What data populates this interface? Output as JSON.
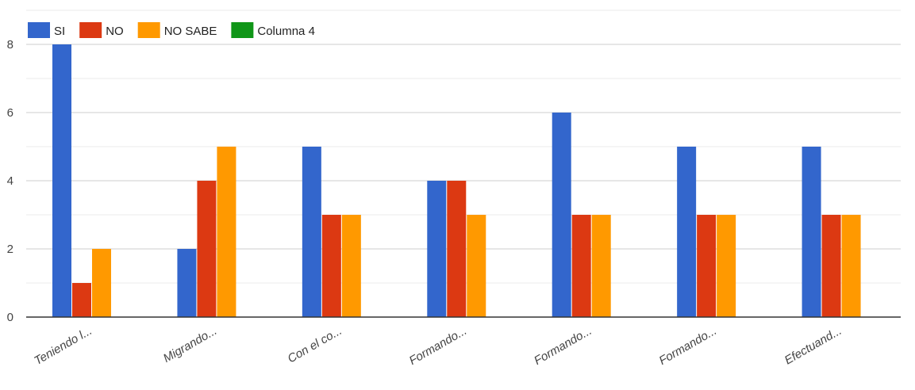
{
  "chart_data": {
    "type": "bar",
    "title": "",
    "xlabel": "",
    "ylabel": "",
    "categories": [
      "Teniendo l...",
      "Migrando...",
      "Con el co...",
      "Formando...",
      "Formando...",
      "Formando...",
      "Efectuand..."
    ],
    "series": [
      {
        "name": "SI",
        "color": "#3366cc",
        "values": [
          8,
          2,
          5,
          4,
          6,
          5,
          5
        ]
      },
      {
        "name": "NO",
        "color": "#dc3912",
        "values": [
          1,
          4,
          3,
          4,
          3,
          3,
          3
        ]
      },
      {
        "name": "NO SABE",
        "color": "#ff9900",
        "values": [
          2,
          5,
          3,
          3,
          3,
          3,
          3
        ]
      },
      {
        "name": "Columna 4",
        "color": "#109618",
        "values": [
          0,
          0,
          0,
          0,
          0,
          0,
          0
        ]
      }
    ],
    "ylim": [
      0,
      8
    ],
    "yticks": [
      0,
      2,
      4,
      6,
      8
    ],
    "grid": true,
    "legend": "top-left"
  }
}
